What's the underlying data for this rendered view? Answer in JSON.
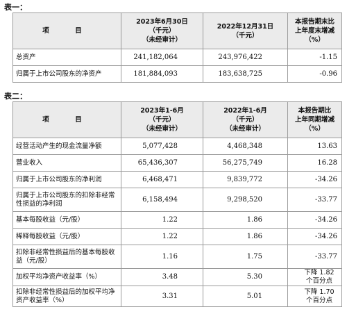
{
  "table1": {
    "title": "表一：",
    "headers": [
      [
        "项　目"
      ],
      [
        "2023年6月30日",
        "（千元）",
        "（未经审计）"
      ],
      [
        "2022年12月31日",
        "（千元）"
      ],
      [
        "本报告期末比",
        "上年度末增减",
        "（%）"
      ]
    ],
    "rows": [
      [
        "总资产",
        "241,182,064",
        "243,976,422",
        "-1.15"
      ],
      [
        "归属于上市公司股东的净资产",
        "181,884,093",
        "183,638,725",
        "-0.96"
      ]
    ]
  },
  "table2": {
    "title": "表二：",
    "headers": [
      [
        "项　目"
      ],
      [
        "2023年1-6月",
        "（千元）",
        "（未经审计）"
      ],
      [
        "2022年1-6月",
        "（千元）",
        "（未经审计）"
      ],
      [
        "本报告期比",
        "上年同期增减",
        "（%）"
      ]
    ],
    "rows": [
      [
        "经营活动产生的现金流量净额",
        "5,077,428",
        "4,468,348",
        "13.63"
      ],
      [
        "营业收入",
        "65,436,307",
        "56,275,749",
        "16.28"
      ],
      [
        "归属于上市公司股东的净利润",
        "6,468,471",
        "9,839,772",
        "-34.26"
      ],
      [
        "归属于上市公司股东的扣除非经常性损益的净利润",
        "6,158,494",
        "9,298,520",
        "-33.77"
      ],
      [
        "基本每股收益（元/股）",
        "1.22",
        "1.86",
        "-34.26"
      ],
      [
        "稀释每股收益（元/股）",
        "1.22",
        "1.86",
        "-34.26"
      ],
      [
        "扣除非经常性损益后的基本每股收益（元/股）",
        "1.16",
        "1.75",
        "-33.77"
      ],
      [
        "加权平均净资产收益率（%）",
        "3.48",
        "5.30",
        "下降 1.82 个百分点"
      ],
      [
        "扣除非经常性损益后的加权平均净资产收益率（%）",
        "3.31",
        "5.01",
        "下降 1.70 个百分点"
      ]
    ]
  }
}
